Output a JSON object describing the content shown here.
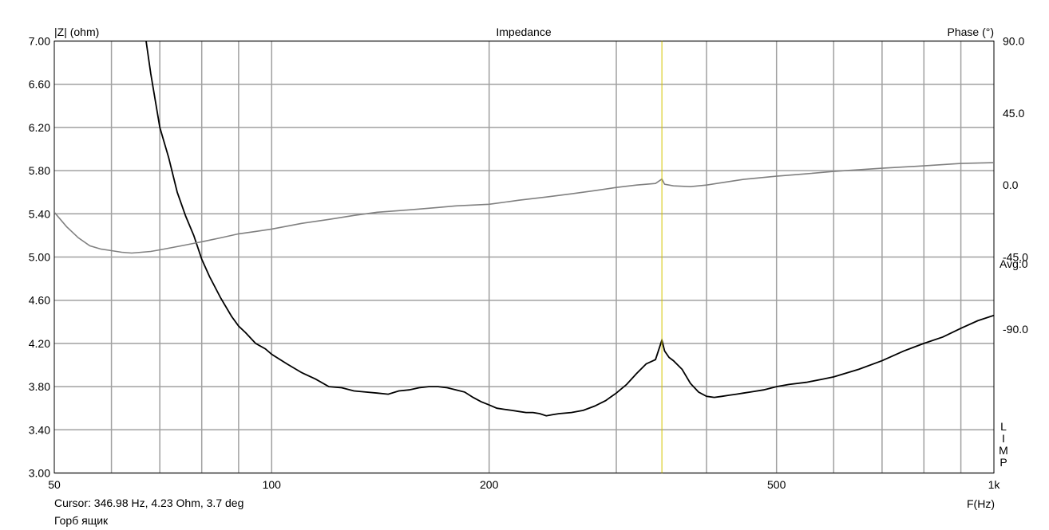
{
  "window": {
    "title": "Impedance"
  },
  "footer": {
    "cursor": "Cursor: 346.98 Hz, 4.23 Ohm, 3.7 deg",
    "name": "Горб ящик"
  },
  "chart_data": {
    "type": "line",
    "title": "Impedance",
    "xlabel": "F(Hz)",
    "ylabel": "|Z| (ohm)",
    "y2label": "Phase (°)",
    "xscale": "log",
    "xlim": [
      50,
      1000
    ],
    "ylim": [
      3.0,
      7.0
    ],
    "y2lim": [
      -180,
      90
    ],
    "x_ticks": [
      50,
      100,
      200,
      500,
      1000
    ],
    "x_tick_labels": [
      "50",
      "100",
      "200",
      "500",
      "1k"
    ],
    "x_grid": [
      60,
      70,
      80,
      90,
      100,
      200,
      300,
      400,
      500,
      600,
      700,
      800,
      900
    ],
    "y_ticks": [
      7.0,
      6.6,
      6.2,
      5.8,
      5.4,
      5.0,
      4.6,
      4.2,
      3.8,
      3.4,
      3.0
    ],
    "y_tick_labels": [
      "7.00",
      "6.60",
      "6.20",
      "5.80",
      "5.40",
      "5.00",
      "4.60",
      "4.20",
      "3.80",
      "3.40",
      "3.00"
    ],
    "y2_ticks": [
      90,
      45,
      0,
      -45,
      -90
    ],
    "y2_tick_labels": [
      "90.0",
      "45.0",
      "0.0",
      "-45.0",
      "-90.0"
    ],
    "right_annotations": [
      "Avg:0",
      "L",
      "I",
      "M",
      "P"
    ],
    "grid": true,
    "colors": {
      "impedance": "#000000",
      "phase": "#808080",
      "grid": "#a0a0a0",
      "cursor": "#d4c400"
    },
    "cursor": {
      "x": 346.98,
      "z": 4.23,
      "phase": 3.7
    },
    "series": [
      {
        "axis": "left",
        "color": "#000000",
        "x": [
          67,
          68,
          70,
          72,
          74,
          76,
          78,
          80,
          82,
          85,
          88,
          90,
          92,
          95,
          98,
          100,
          105,
          110,
          115,
          120,
          125,
          130,
          135,
          140,
          145,
          150,
          155,
          160,
          165,
          170,
          175,
          180,
          185,
          190,
          195,
          200,
          205,
          210,
          215,
          220,
          225,
          230,
          235,
          240,
          245,
          250,
          260,
          270,
          280,
          290,
          300,
          310,
          320,
          330,
          340,
          346.98,
          350,
          355,
          360,
          370,
          380,
          390,
          400,
          410,
          420,
          430,
          440,
          450,
          460,
          480,
          500,
          520,
          550,
          580,
          600,
          650,
          700,
          750,
          800,
          850,
          900,
          950,
          1000
        ],
        "values": [
          7.0,
          6.7,
          6.2,
          5.92,
          5.6,
          5.38,
          5.2,
          4.98,
          4.82,
          4.62,
          4.45,
          4.36,
          4.3,
          4.2,
          4.15,
          4.1,
          4.01,
          3.93,
          3.87,
          3.8,
          3.79,
          3.76,
          3.75,
          3.74,
          3.73,
          3.76,
          3.77,
          3.79,
          3.8,
          3.8,
          3.79,
          3.77,
          3.75,
          3.7,
          3.66,
          3.63,
          3.6,
          3.59,
          3.58,
          3.57,
          3.56,
          3.56,
          3.55,
          3.53,
          3.54,
          3.55,
          3.56,
          3.58,
          3.62,
          3.67,
          3.74,
          3.82,
          3.92,
          4.01,
          4.05,
          4.23,
          4.13,
          4.07,
          4.04,
          3.96,
          3.83,
          3.75,
          3.71,
          3.7,
          3.71,
          3.72,
          3.73,
          3.74,
          3.75,
          3.77,
          3.8,
          3.82,
          3.84,
          3.87,
          3.89,
          3.96,
          4.04,
          4.13,
          4.2,
          4.26,
          4.34,
          4.41,
          4.46
        ]
      },
      {
        "axis": "right",
        "color": "#808080",
        "x": [
          50,
          52,
          54,
          56,
          58,
          60,
          62,
          64,
          66,
          68,
          70,
          75,
          80,
          85,
          90,
          95,
          100,
          110,
          120,
          130,
          140,
          150,
          160,
          170,
          180,
          200,
          220,
          240,
          260,
          280,
          300,
          320,
          340,
          346.98,
          350,
          360,
          380,
          400,
          420,
          450,
          500,
          550,
          600,
          700,
          800,
          900,
          1000
        ],
        "values": [
          -17,
          -26,
          -33,
          -38,
          -40,
          -41,
          -42,
          -42.5,
          -42,
          -41.5,
          -40.5,
          -38,
          -35.5,
          -33,
          -30.5,
          -29,
          -27.5,
          -24,
          -21.5,
          -19,
          -17,
          -16,
          -15,
          -14,
          -13,
          -12,
          -9.5,
          -7.5,
          -5.5,
          -3.5,
          -1.5,
          0,
          1,
          3.7,
          0.5,
          -0.5,
          -1,
          0,
          1.5,
          3.5,
          5.5,
          7,
          8.5,
          10.5,
          12,
          13.5,
          14
        ]
      }
    ]
  }
}
